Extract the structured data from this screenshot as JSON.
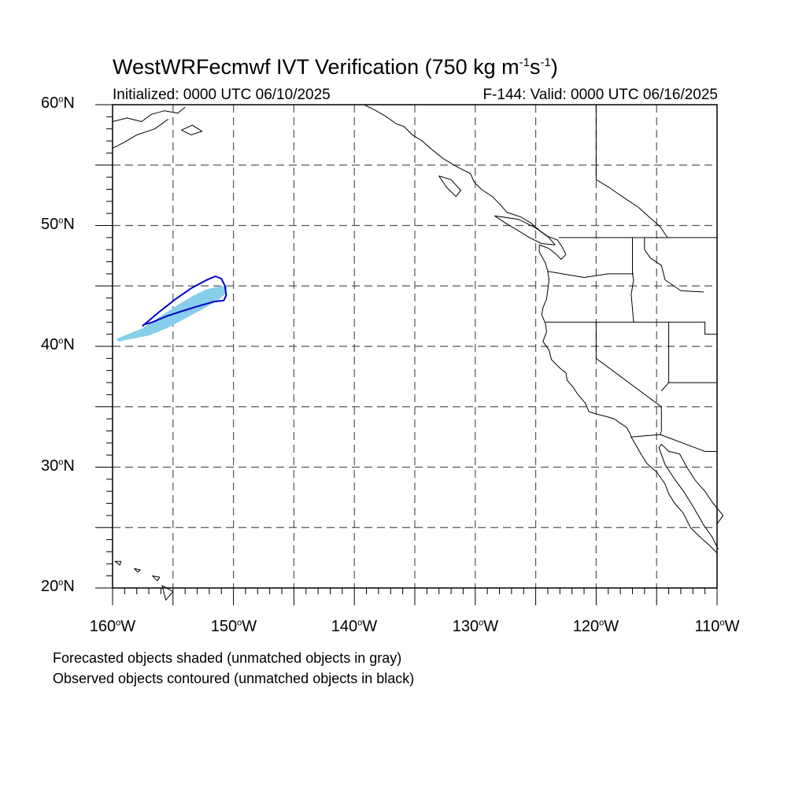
{
  "title": {
    "main": "WestWRFecmwf IVT Verification (750 kg m",
    "sup1": "-1",
    "mid": "s",
    "sup2": "-1",
    "end": ")"
  },
  "subtitle_left": "Initialized: 0000 UTC 06/10/2025",
  "subtitle_right": "F-144: Valid: 0000 UTC 06/16/2025",
  "degree_symbol": "o",
  "lat_labels": [
    {
      "num": "60",
      "hem": "N"
    },
    {
      "num": "50",
      "hem": "N"
    },
    {
      "num": "40",
      "hem": "N"
    },
    {
      "num": "30",
      "hem": "N"
    },
    {
      "num": "20",
      "hem": "N"
    }
  ],
  "lon_labels": [
    {
      "num": "160",
      "hem": "W"
    },
    {
      "num": "150",
      "hem": "W"
    },
    {
      "num": "140",
      "hem": "W"
    },
    {
      "num": "130",
      "hem": "W"
    },
    {
      "num": "120",
      "hem": "W"
    },
    {
      "num": "110",
      "hem": "W"
    }
  ],
  "notes": {
    "forecast": "Forecasted objects shaded (unmatched objects in gray)",
    "observed": "Observed objects contoured (unmatched objects in black)"
  },
  "map_extent": {
    "lon_min": -160,
    "lon_max": -110,
    "lat_min": 20,
    "lat_max": 60
  },
  "colors": {
    "forecast_fill": "#87ceeb",
    "observed_contour": "#0000cd",
    "coastline": "#000000",
    "grid": "#555555"
  },
  "forecast_object": [
    [
      -159.5,
      40.4
    ],
    [
      -158.5,
      40.6
    ],
    [
      -157.0,
      40.9
    ],
    [
      -155.5,
      41.5
    ],
    [
      -154.0,
      42.3
    ],
    [
      -152.5,
      43.1
    ],
    [
      -151.3,
      43.8
    ],
    [
      -150.7,
      44.3
    ],
    [
      -150.5,
      44.9
    ],
    [
      -151.0,
      45.0
    ],
    [
      -152.3,
      44.7
    ],
    [
      -153.3,
      44.2
    ],
    [
      -154.5,
      43.5
    ],
    [
      -156.0,
      42.5
    ],
    [
      -157.5,
      41.5
    ],
    [
      -159.0,
      40.9
    ],
    [
      -159.7,
      40.6
    ]
  ],
  "observed_object": [
    [
      -157.5,
      41.7
    ],
    [
      -156.2,
      42.8
    ],
    [
      -154.8,
      43.9
    ],
    [
      -153.5,
      44.8
    ],
    [
      -152.2,
      45.5
    ],
    [
      -151.5,
      45.8
    ],
    [
      -151.0,
      45.6
    ],
    [
      -150.7,
      45.0
    ],
    [
      -150.6,
      44.2
    ],
    [
      -150.8,
      43.8
    ],
    [
      -151.6,
      43.7
    ],
    [
      -153.0,
      43.3
    ],
    [
      -154.3,
      42.9
    ],
    [
      -155.5,
      42.5
    ],
    [
      -156.7,
      42.0
    ],
    [
      -157.4,
      41.8
    ]
  ]
}
